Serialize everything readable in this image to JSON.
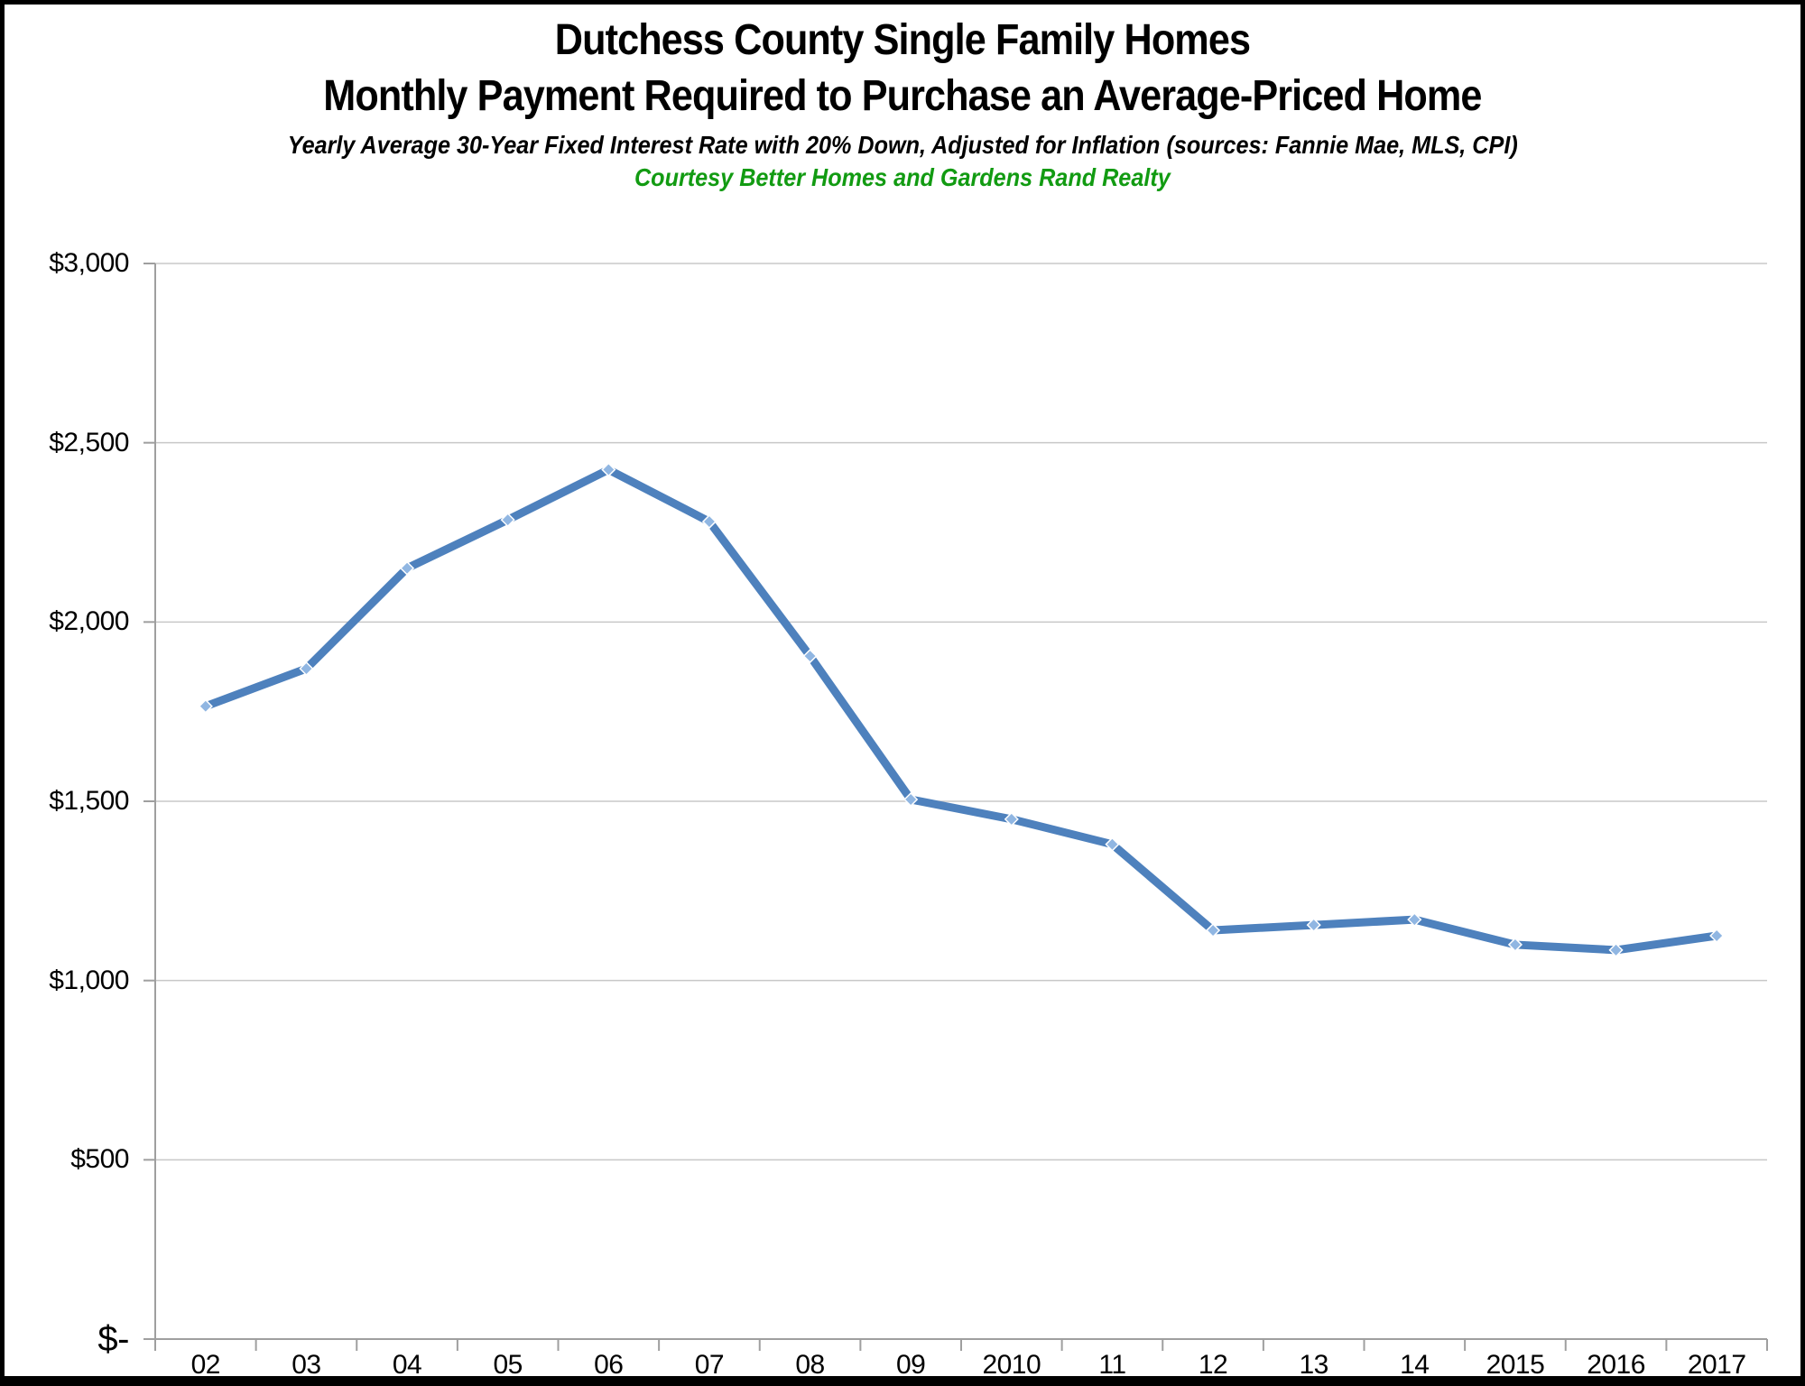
{
  "header": {
    "title_line1": "Dutchess County Single Family Homes",
    "title_line2": "Monthly Payment Required to Purchase an Average-Priced Home",
    "subtitle": "Yearly Average 30-Year Fixed Interest Rate with 20% Down, Adjusted for Inflation (sources: Fannie Mae, MLS, CPI)",
    "courtesy": "Courtesy Better Homes and Gardens Rand Realty"
  },
  "colors": {
    "title_text": "#000000",
    "courtesy_green": "#129b12",
    "line": "#4e81bd",
    "marker_fill": "#90b6e2",
    "marker_halo": "#ffffff",
    "gridline": "#c8c8c8",
    "axis": "#9f9f9f",
    "frame": "#000000"
  },
  "chart_data": {
    "type": "line",
    "title": "Dutchess County Single Family Homes — Monthly Payment Required to Purchase an Average-Priced Home",
    "subtitle": "Yearly Average 30-Year Fixed Interest Rate with 20% Down, Adjusted for Inflation (sources: Fannie Mae, MLS, CPI)",
    "categories": [
      "02",
      "03",
      "04",
      "05",
      "06",
      "07",
      "08",
      "09",
      "2010",
      "11",
      "12",
      "13",
      "14",
      "2015",
      "2016",
      "2017"
    ],
    "values": [
      1765,
      1870,
      2150,
      2285,
      2425,
      2280,
      1905,
      1505,
      1450,
      1380,
      1140,
      1155,
      1170,
      1100,
      1085,
      1125
    ],
    "xlabel": "",
    "ylabel": "",
    "ylim": [
      0,
      3000
    ],
    "y_tick_step": 500,
    "y_tick_values": [
      0,
      500,
      1000,
      1500,
      2000,
      2500,
      3000
    ],
    "y_tick_labels": [
      "$-",
      "$500",
      "$1,000",
      "$1,500",
      "$2,000",
      "$2,500",
      "$3,000"
    ],
    "grid": "horizontal",
    "legend": "none",
    "marker": "diamond"
  }
}
